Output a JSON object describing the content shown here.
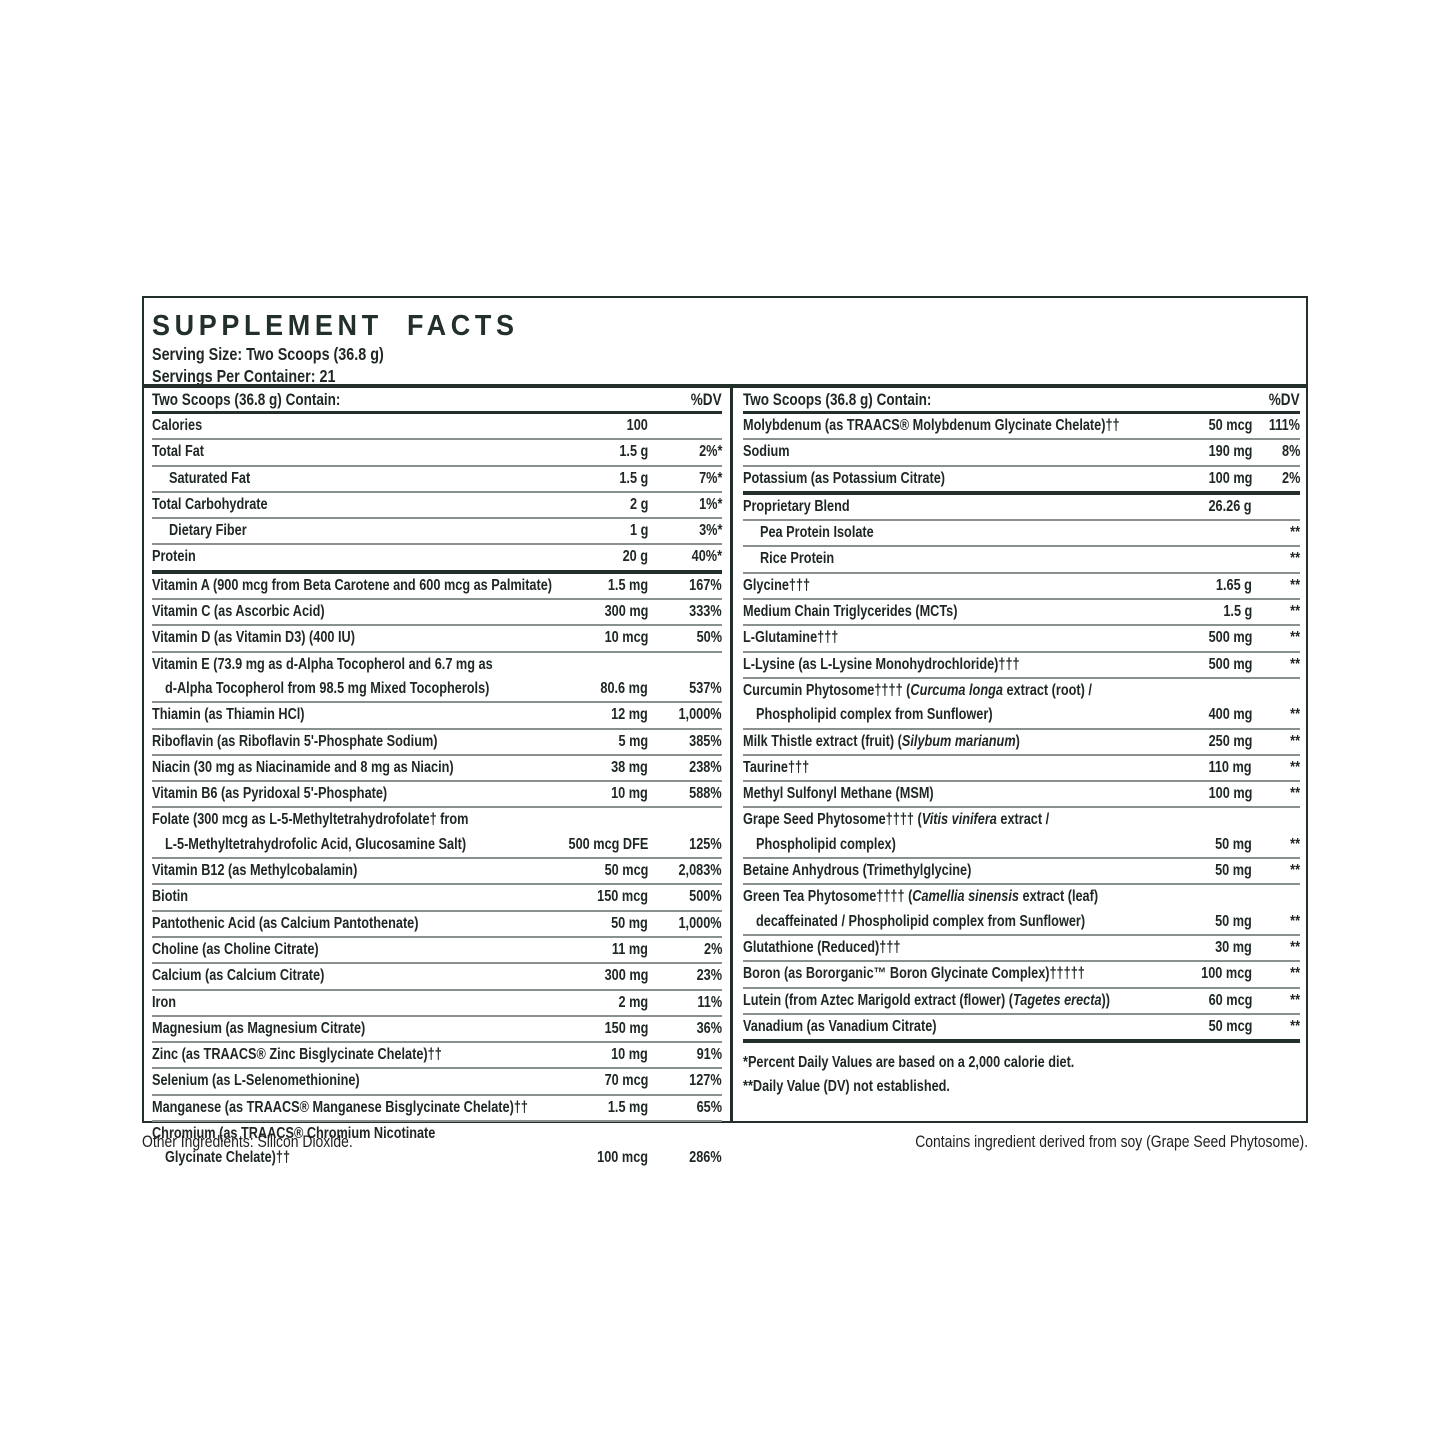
{
  "theme": {
    "ink": "#223029",
    "rule_gray": "#8a908b",
    "text": "#1e2722",
    "bg": "#ffffff"
  },
  "label": {
    "title": "SUPPLEMENT FACTS",
    "serving_size": "Serving Size: Two Scoops (36.8 g)",
    "servings_per_container": "Servings Per Container: 21",
    "footnotes": [
      "*Percent Daily Values are based on a 2,000 calorie diet.",
      "**Daily Value (DV) not established."
    ],
    "other_ingredients": "Other Ingredients: Silicon Dioxide.",
    "allergen_note": "Contains ingredient derived from soy (Grape Seed Phytosome).",
    "columns": {
      "left": {
        "header": "Two Scoops (36.8 g) Contain:",
        "dv_header": "%DV",
        "rows": [
          {
            "line1": [
              {
                "t": "Calories"
              }
            ],
            "amount": "100",
            "dv": "",
            "sep": "none"
          },
          {
            "line1": [
              {
                "t": "Total Fat"
              }
            ],
            "amount": "1.5 g",
            "dv": "2%*"
          },
          {
            "line1": [
              {
                "t": "Saturated Fat"
              }
            ],
            "amount": "1.5 g",
            "dv": "7%*",
            "indent": true
          },
          {
            "line1": [
              {
                "t": "Total Carbohydrate"
              }
            ],
            "amount": "2 g",
            "dv": "1%*"
          },
          {
            "line1": [
              {
                "t": "Dietary Fiber"
              }
            ],
            "amount": "1 g",
            "dv": "3%*",
            "indent": true
          },
          {
            "line1": [
              {
                "t": "Protein"
              }
            ],
            "amount": "20 g",
            "dv": "40%*"
          },
          {
            "line1": [
              {
                "t": "Vitamin A (900 mcg from Beta Carotene and 600 mcg as Palmitate)"
              }
            ],
            "amount": "1.5 mg",
            "dv": "167%",
            "sep": "thick"
          },
          {
            "line1": [
              {
                "t": "Vitamin C (as Ascorbic Acid)"
              }
            ],
            "amount": "300 mg",
            "dv": "333%"
          },
          {
            "line1": [
              {
                "t": "Vitamin D (as Vitamin D3) (400 IU)"
              }
            ],
            "amount": "10 mcg",
            "dv": "50%"
          },
          {
            "line1": [
              {
                "t": "Vitamin E (73.9 mg as d-Alpha Tocopherol and 6.7 mg as"
              }
            ],
            "line2": [
              {
                "t": "d-Alpha Tocopherol from 98.5 mg Mixed Tocopherols)"
              }
            ],
            "amount": "80.6 mg",
            "dv": "537%"
          },
          {
            "line1": [
              {
                "t": "Thiamin (as Thiamin HCl)"
              }
            ],
            "amount": "12 mg",
            "dv": "1,000%"
          },
          {
            "line1": [
              {
                "t": "Riboflavin (as Riboflavin 5'-Phosphate Sodium)"
              }
            ],
            "amount": "5 mg",
            "dv": "385%"
          },
          {
            "line1": [
              {
                "t": "Niacin (30 mg as Niacinamide and 8 mg as Niacin)"
              }
            ],
            "amount": "38 mg",
            "dv": "238%"
          },
          {
            "line1": [
              {
                "t": "Vitamin B6 (as Pyridoxal 5'-Phosphate)"
              }
            ],
            "amount": "10 mg",
            "dv": "588%"
          },
          {
            "line1": [
              {
                "t": "Folate (300 mcg as L-5-Methyltetrahydrofolate† from"
              }
            ],
            "line2": [
              {
                "t": "L-5-Methyltetrahydrofolic Acid, Glucosamine Salt)"
              }
            ],
            "amount": "500 mcg DFE",
            "dv": "125%"
          },
          {
            "line1": [
              {
                "t": "Vitamin B12 (as Methylcobalamin)"
              }
            ],
            "amount": "50 mcg",
            "dv": "2,083%"
          },
          {
            "line1": [
              {
                "t": "Biotin"
              }
            ],
            "amount": "150 mcg",
            "dv": "500%"
          },
          {
            "line1": [
              {
                "t": "Pantothenic Acid (as Calcium Pantothenate)"
              }
            ],
            "amount": "50 mg",
            "dv": "1,000%"
          },
          {
            "line1": [
              {
                "t": "Choline (as Choline Citrate)"
              }
            ],
            "amount": "11 mg",
            "dv": "2%"
          },
          {
            "line1": [
              {
                "t": "Calcium (as Calcium Citrate)"
              }
            ],
            "amount": "300 mg",
            "dv": "23%"
          },
          {
            "line1": [
              {
                "t": "Iron"
              }
            ],
            "amount": "2 mg",
            "dv": "11%"
          },
          {
            "line1": [
              {
                "t": "Magnesium (as Magnesium Citrate)"
              }
            ],
            "amount": "150 mg",
            "dv": "36%"
          },
          {
            "line1": [
              {
                "t": "Zinc (as TRAACS® Zinc Bisglycinate Chelate)††"
              }
            ],
            "amount": "10 mg",
            "dv": "91%"
          },
          {
            "line1": [
              {
                "t": "Selenium (as L-Selenomethionine)"
              }
            ],
            "amount": "70 mcg",
            "dv": "127%"
          },
          {
            "line1": [
              {
                "t": "Manganese (as TRAACS® Manganese Bisglycinate Chelate)††"
              }
            ],
            "amount": "1.5 mg",
            "dv": "65%"
          },
          {
            "line1": [
              {
                "t": "Chromium (as TRAACS® Chromium Nicotinate"
              }
            ],
            "line2": [
              {
                "t": "Glycinate Chelate)††"
              }
            ],
            "amount": "100 mcg",
            "dv": "286%"
          }
        ]
      },
      "right": {
        "header": "Two Scoops (36.8 g) Contain:",
        "dv_header": "%DV",
        "rows": [
          {
            "line1": [
              {
                "t": "Molybdenum (as TRAACS® Molybdenum Glycinate Chelate)††"
              }
            ],
            "amount": "50 mcg",
            "dv": "111%",
            "sep": "none"
          },
          {
            "line1": [
              {
                "t": "Sodium"
              }
            ],
            "amount": "190 mg",
            "dv": "8%"
          },
          {
            "line1": [
              {
                "t": "Potassium (as Potassium Citrate)"
              }
            ],
            "amount": "100 mg",
            "dv": "2%"
          },
          {
            "line1": [
              {
                "t": "Proprietary Blend"
              }
            ],
            "amount": "26.26 g",
            "dv": "",
            "sep": "thick"
          },
          {
            "line1": [
              {
                "t": "Pea Protein Isolate"
              }
            ],
            "amount": "",
            "dv": "**",
            "indent": true
          },
          {
            "line1": [
              {
                "t": "Rice Protein"
              }
            ],
            "amount": "",
            "dv": "**",
            "indent": true
          },
          {
            "line1": [
              {
                "t": "Glycine†††"
              }
            ],
            "amount": "1.65 g",
            "dv": "**"
          },
          {
            "line1": [
              {
                "t": "Medium Chain Triglycerides (MCTs)"
              }
            ],
            "amount": "1.5 g",
            "dv": "**"
          },
          {
            "line1": [
              {
                "t": "L-Glutamine†††"
              }
            ],
            "amount": "500 mg",
            "dv": "**"
          },
          {
            "line1": [
              {
                "t": "L-Lysine (as L-Lysine Monohydrochloride)†††"
              }
            ],
            "amount": "500 mg",
            "dv": "**"
          },
          {
            "line1": [
              {
                "t": "Curcumin Phytosome†††† ("
              },
              {
                "t": "Curcuma longa",
                "i": true
              },
              {
                "t": " extract (root) /"
              }
            ],
            "line2": [
              {
                "t": "Phospholipid complex from Sunflower)"
              }
            ],
            "amount": "400 mg",
            "dv": "**"
          },
          {
            "line1": [
              {
                "t": "Milk Thistle extract (fruit) ("
              },
              {
                "t": "Silybum marianum",
                "i": true
              },
              {
                "t": ")"
              }
            ],
            "amount": "250 mg",
            "dv": "**"
          },
          {
            "line1": [
              {
                "t": "Taurine†††"
              }
            ],
            "amount": "110 mg",
            "dv": "**"
          },
          {
            "line1": [
              {
                "t": "Methyl Sulfonyl Methane (MSM)"
              }
            ],
            "amount": "100 mg",
            "dv": "**"
          },
          {
            "line1": [
              {
                "t": "Grape Seed Phytosome†††† ("
              },
              {
                "t": "Vitis vinifera",
                "i": true
              },
              {
                "t": " extract /"
              }
            ],
            "line2": [
              {
                "t": "Phospholipid complex)"
              }
            ],
            "amount": "50 mg",
            "dv": "**"
          },
          {
            "line1": [
              {
                "t": "Betaine Anhydrous (Trimethylglycine)"
              }
            ],
            "amount": "50 mg",
            "dv": "**"
          },
          {
            "line1": [
              {
                "t": "Green Tea Phytosome†††† ("
              },
              {
                "t": "Camellia sinensis",
                "i": true
              },
              {
                "t": " extract (leaf)"
              }
            ],
            "line2": [
              {
                "t": "decaffeinated / Phospholipid complex from Sunflower)"
              }
            ],
            "amount": "50 mg",
            "dv": "**"
          },
          {
            "line1": [
              {
                "t": "Glutathione (Reduced)†††"
              }
            ],
            "amount": "30 mg",
            "dv": "**"
          },
          {
            "line1": [
              {
                "t": "Boron (as Bororganic™ Boron Glycinate Complex)†††††"
              }
            ],
            "amount": "100 mcg",
            "dv": "**"
          },
          {
            "line1": [
              {
                "t": "Lutein (from Aztec Marigold extract (flower) ("
              },
              {
                "t": "Tagetes erecta",
                "i": true
              },
              {
                "t": "))"
              }
            ],
            "amount": "60 mcg",
            "dv": "**"
          },
          {
            "line1": [
              {
                "t": "Vanadium (as Vanadium Citrate)"
              }
            ],
            "amount": "50 mcg",
            "dv": "**"
          }
        ]
      }
    }
  }
}
